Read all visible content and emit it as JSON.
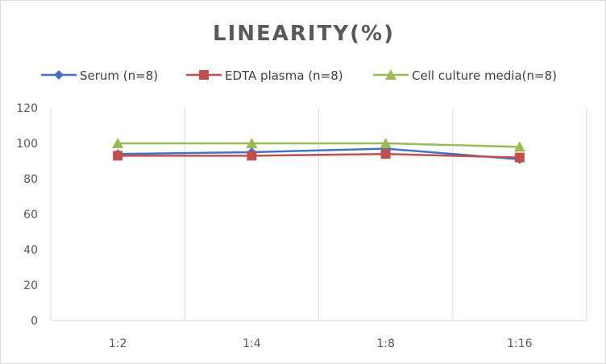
{
  "chart_data": {
    "type": "line",
    "title": "LINEARITY(%)",
    "xlabel": "",
    "ylabel": "",
    "categories": [
      "1:2",
      "1:4",
      "1:8",
      "1:16"
    ],
    "ylim": [
      0,
      120
    ],
    "yticks": [
      0,
      20,
      40,
      60,
      80,
      100,
      120
    ],
    "grid": "vertical",
    "legend": "top",
    "series": [
      {
        "name": "Serum (n=8)",
        "values": [
          94,
          95,
          97,
          91
        ],
        "color": "#4472C4",
        "marker": "diamond"
      },
      {
        "name": "EDTA plasma (n=8)",
        "values": [
          93,
          93,
          94,
          92
        ],
        "color": "#C0504D",
        "marker": "square"
      },
      {
        "name": "Cell culture media(n=8)",
        "values": [
          100,
          100,
          100,
          98
        ],
        "color": "#9BBB59",
        "marker": "triangle"
      }
    ]
  }
}
